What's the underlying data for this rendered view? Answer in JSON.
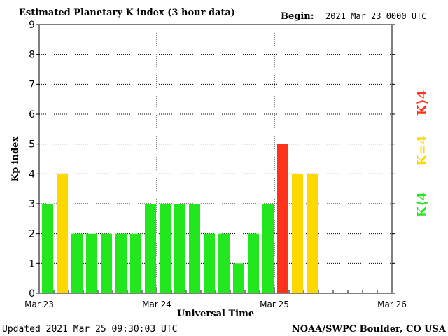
{
  "header": {
    "title": "Estimated Planetary K index (3 hour data)",
    "begin_label": "Begin:",
    "begin_value": "2021 Mar 23 0000 UTC"
  },
  "footer": {
    "updated": "Updated 2021 Mar 25 09:30:03 UTC",
    "source": "NOAA/SWPC Boulder, CO USA"
  },
  "legend": {
    "low": "K⟨4",
    "equal": "K=4",
    "high": "K⟩4"
  },
  "colors": {
    "low": "#22e61e",
    "equal": "#ffd800",
    "high": "#ff3319",
    "grid": "#000000"
  },
  "chart_data": {
    "type": "bar",
    "title": "Estimated Planetary K index (3 hour data)",
    "xlabel": "Universal Time",
    "ylabel": "Kp index",
    "ylim": [
      0,
      9
    ],
    "yticks": [
      "0",
      "1",
      "2",
      "3",
      "4",
      "5",
      "6",
      "7",
      "8",
      "9"
    ],
    "xticks": [
      "Mar 23",
      "Mar 24",
      "Mar 25",
      "Mar 26"
    ],
    "interval_hours": 3,
    "values": [
      3,
      4,
      2,
      2,
      2,
      2,
      2,
      3,
      3,
      3,
      3,
      2,
      2,
      1,
      2,
      3,
      5,
      4,
      4
    ],
    "grid": true
  }
}
